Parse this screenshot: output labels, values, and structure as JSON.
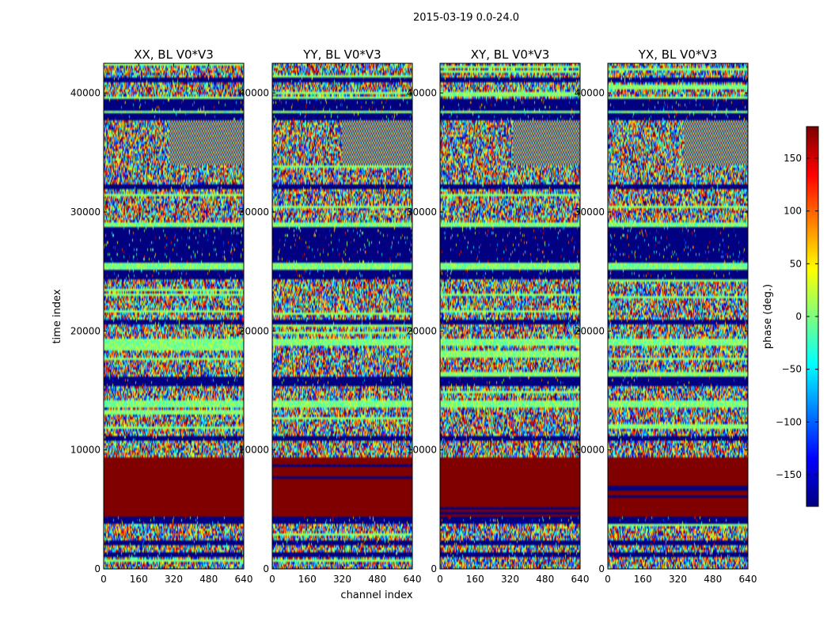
{
  "chart_data": {
    "type": "heatmap",
    "suptitle": "2015-03-19 0.0-24.0",
    "xlabel": "channel index",
    "ylabel": "time index",
    "xlim": [
      0,
      640
    ],
    "ylim": [
      0,
      42500
    ],
    "xticks": [
      0,
      160,
      320,
      480,
      640
    ],
    "yticks": [
      0,
      10000,
      20000,
      30000,
      40000
    ],
    "panels": [
      {
        "title": "XX, BL V0*V3"
      },
      {
        "title": "YY, BL V0*V3"
      },
      {
        "title": "XY, BL V0*V3"
      },
      {
        "title": "YX, BL V0*V3"
      }
    ],
    "colormap": "jet",
    "colorbar": {
      "label": "phase (deg.)",
      "range": [
        -180,
        180
      ],
      "ticks": [
        -150,
        -100,
        -50,
        0,
        50,
        100,
        150
      ]
    },
    "bands": [
      {
        "t0": 0,
        "t1": 1000,
        "kind": "noise"
      },
      {
        "t0": 1000,
        "t1": 1300,
        "kind": "low"
      },
      {
        "t0": 1300,
        "t1": 1900,
        "kind": "noise"
      },
      {
        "t0": 1900,
        "t1": 2300,
        "kind": "low"
      },
      {
        "t0": 2300,
        "t1": 3700,
        "kind": "noise"
      },
      {
        "t0": 3700,
        "t1": 4300,
        "kind": "low"
      },
      {
        "t0": 4300,
        "t1": 9300,
        "kind": "high"
      },
      {
        "t0": 9300,
        "t1": 10700,
        "kind": "noise"
      },
      {
        "t0": 10700,
        "t1": 11200,
        "kind": "low"
      },
      {
        "t0": 11200,
        "t1": 13500,
        "kind": "noise"
      },
      {
        "t0": 13500,
        "t1": 14200,
        "kind": "zero"
      },
      {
        "t0": 14200,
        "t1": 15300,
        "kind": "noise"
      },
      {
        "t0": 15300,
        "t1": 16200,
        "kind": "low"
      },
      {
        "t0": 16200,
        "t1": 18700,
        "kind": "noise"
      },
      {
        "t0": 18700,
        "t1": 19400,
        "kind": "zero"
      },
      {
        "t0": 19400,
        "t1": 20600,
        "kind": "noise"
      },
      {
        "t0": 20600,
        "t1": 21000,
        "kind": "low"
      },
      {
        "t0": 21000,
        "t1": 24300,
        "kind": "noise"
      },
      {
        "t0": 24300,
        "t1": 25200,
        "kind": "low"
      },
      {
        "t0": 25200,
        "t1": 25800,
        "kind": "zero"
      },
      {
        "t0": 25800,
        "t1": 28700,
        "kind": "low"
      },
      {
        "t0": 28700,
        "t1": 29100,
        "kind": "zero"
      },
      {
        "t0": 29100,
        "t1": 32000,
        "kind": "noise"
      },
      {
        "t0": 32000,
        "t1": 32400,
        "kind": "low"
      },
      {
        "t0": 32400,
        "t1": 34000,
        "kind": "noise"
      },
      {
        "t0": 34000,
        "t1": 37800,
        "kind": "fringe"
      },
      {
        "t0": 37800,
        "t1": 38400,
        "kind": "low"
      },
      {
        "t0": 38400,
        "t1": 38600,
        "kind": "zero"
      },
      {
        "t0": 38600,
        "t1": 39600,
        "kind": "low"
      },
      {
        "t0": 39600,
        "t1": 41000,
        "kind": "noise"
      },
      {
        "t0": 41000,
        "t1": 41300,
        "kind": "low"
      },
      {
        "t0": 41300,
        "t1": 42500,
        "kind": "noise"
      }
    ]
  }
}
